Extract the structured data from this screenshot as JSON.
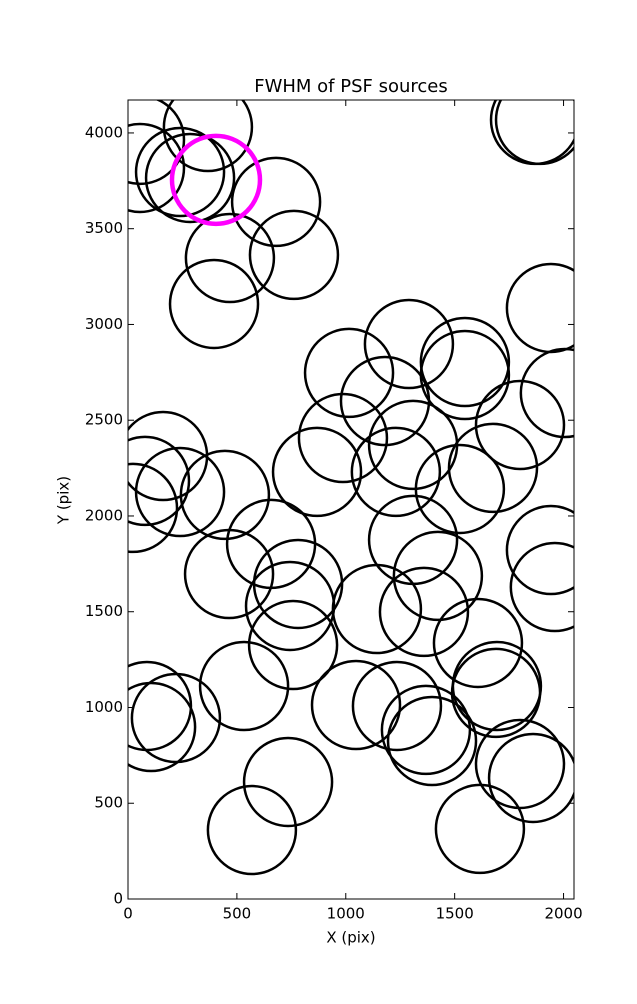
{
  "chart_data": {
    "type": "scatter",
    "title": "FWHM of PSF sources",
    "x_label": "X (pix)",
    "y_label": "Y (pix)",
    "xlim": [
      0,
      2048
    ],
    "ylim": [
      0,
      4172
    ],
    "xticks": [
      0,
      500,
      1000,
      1500,
      2000
    ],
    "yticks": [
      0,
      500,
      1000,
      1500,
      2000,
      2500,
      3000,
      3500,
      4000
    ],
    "series": [
      {
        "color": "#000000",
        "x": [
          55,
          367,
          55,
          239,
          285,
          680,
          468,
          762,
          395,
          1869,
          1892,
          1942,
          1547,
          1290,
          1015,
          1180,
          1547,
          2006,
          1800,
          1309,
          987,
          161,
          78,
          868,
          1230,
          1676,
          1524,
          239,
          445,
          23,
          1309,
          657,
          464,
          1942,
          1960,
          1423,
          781,
          1143,
          1359,
          744,
          758,
          1607,
          87,
          220,
          106,
          533,
          1047,
          1235,
          1368,
          1396,
          1694,
          1690,
          1800,
          1860,
          735,
          569,
          1616
        ],
        "values": [
          3964,
          4031,
          3817,
          3796,
          3765,
          3640,
          3347,
          3363,
          3107,
          4068,
          4068,
          3086,
          2804,
          2898,
          2747,
          2600,
          2736,
          2642,
          2475,
          2371,
          2407,
          2313,
          2183,
          2230,
          2230,
          2251,
          2141,
          2125,
          2110,
          2042,
          1875,
          1854,
          1697,
          1822,
          1629,
          1687,
          1645,
          1514,
          1499,
          1530,
          1326,
          1337,
          1008,
          945,
          898,
          1112,
          1013,
          1008,
          883,
          825,
          1112,
          1076,
          705,
          632,
          611,
          360,
          366
        ]
      },
      {
        "color": "#ff00ff",
        "x": [
          404
        ],
        "values": [
          3755
        ]
      }
    ]
  }
}
